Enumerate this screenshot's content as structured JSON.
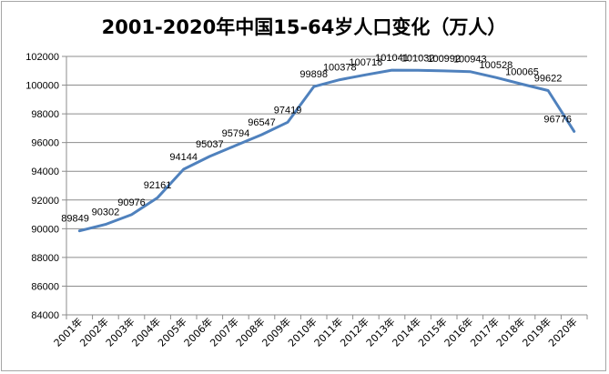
{
  "chart_data": {
    "type": "line",
    "title": "2001-2020年中国15-64岁人口变化（万人）",
    "categories": [
      "2001年",
      "2002年",
      "2003年",
      "2004年",
      "2005年",
      "2006年",
      "2007年",
      "2008年",
      "2009年",
      "2010年",
      "2011年",
      "2012年",
      "2013年",
      "2014年",
      "2015年",
      "2016年",
      "2017年",
      "2018年",
      "2019年",
      "2020年"
    ],
    "series": [
      {
        "values": [
          89849,
          90302,
          90976,
          92161,
          94144,
          95037,
          95794,
          96547,
          97419,
          99898,
          100378,
          100718,
          101041,
          101032,
          100992,
          100943,
          100528,
          100065,
          99622,
          96776
        ],
        "color": "#4f81bd"
      }
    ],
    "data_labels": [
      "89849",
      "90302",
      "90976",
      "92161",
      "94144",
      "95037",
      "95794",
      "96547",
      "97419",
      "99898",
      "100378",
      "100718",
      "101041",
      "101032",
      "100992",
      "100943",
      "100528",
      "100065",
      "99622",
      "96776"
    ],
    "ylim": [
      84000,
      102000
    ],
    "yticks": [
      84000,
      86000,
      88000,
      90000,
      92000,
      94000,
      96000,
      98000,
      100000,
      102000
    ],
    "ytick_labels": [
      "84000",
      "86000",
      "88000",
      "90000",
      "92000",
      "94000",
      "96000",
      "98000",
      "100000",
      "102000"
    ],
    "grid": true,
    "legend": "none"
  }
}
